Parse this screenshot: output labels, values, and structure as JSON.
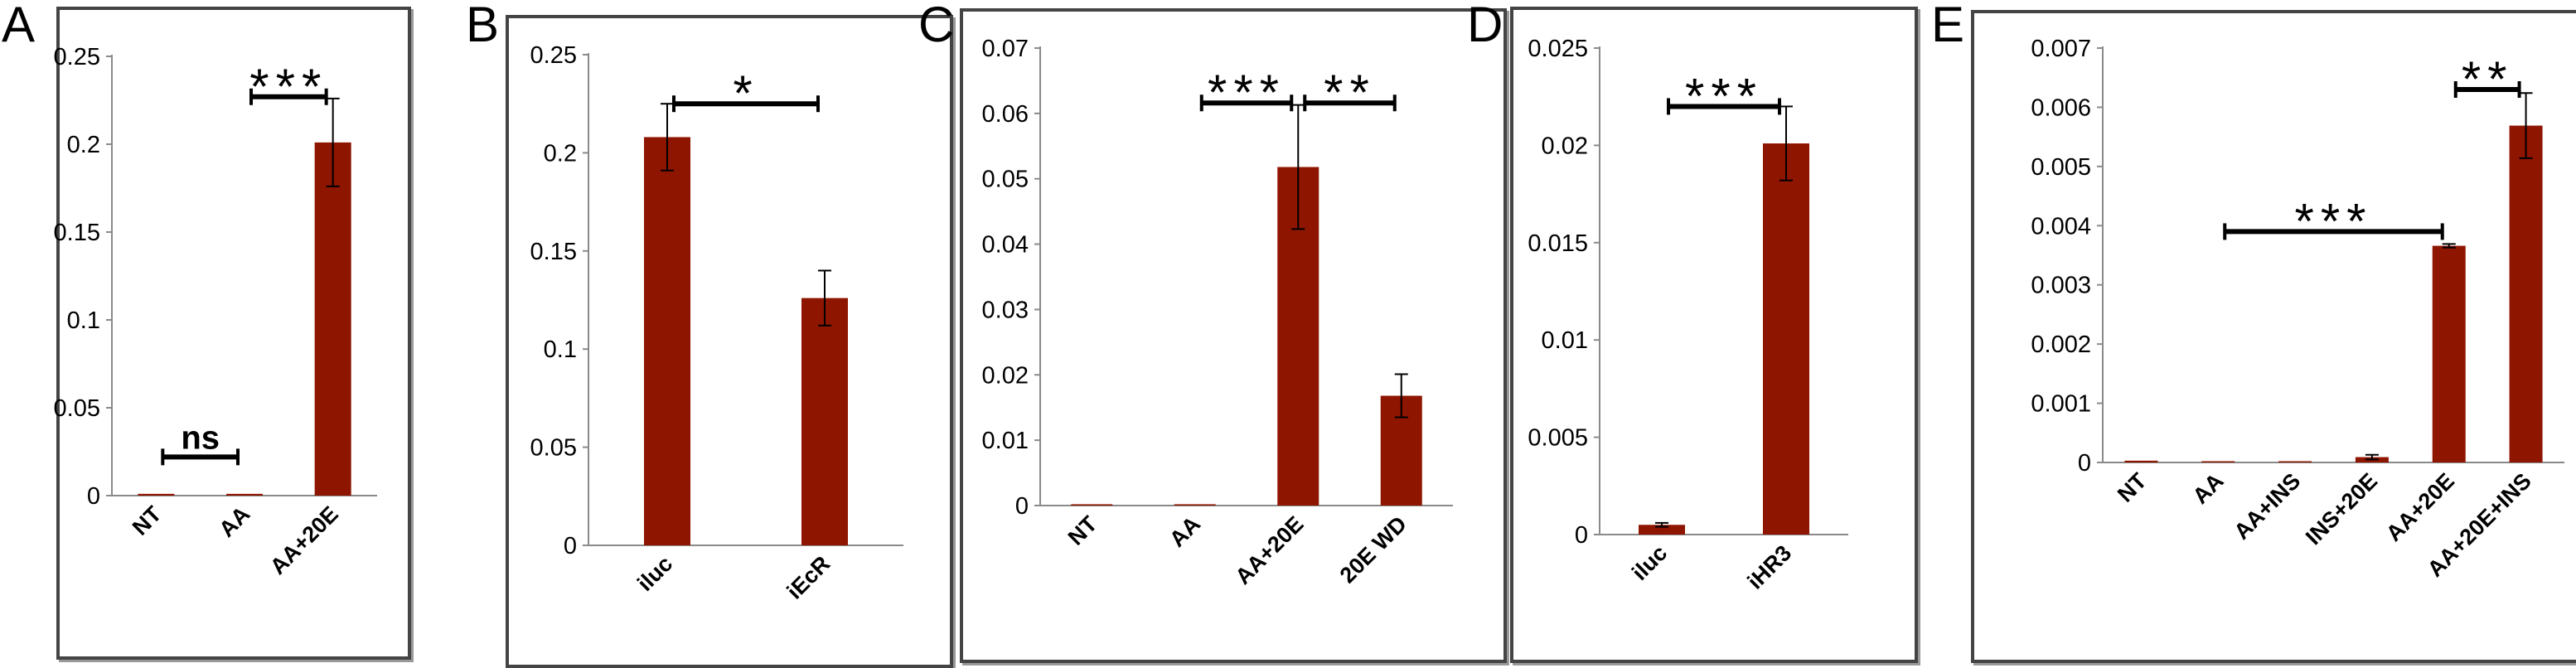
{
  "chart_data": [
    {
      "panel": "A",
      "type": "bar",
      "categories": [
        "NT",
        "AA",
        "AA+20E"
      ],
      "values": [
        0.001,
        0.001,
        0.201
      ],
      "errors": [
        0,
        0,
        0.025
      ],
      "ylim": [
        0,
        0.25
      ],
      "yticks": [
        0,
        0.05,
        0.1,
        0.15,
        0.2,
        0.25
      ],
      "ytick_labels": [
        "0",
        "0.05",
        "0.1",
        "0.15",
        "0.2",
        "0.25"
      ],
      "annotations": [
        {
          "label": "ns",
          "from": 0,
          "to": 1,
          "y": 0.022
        },
        {
          "label": "***",
          "from": 1,
          "to": 2,
          "y": 0.227
        }
      ],
      "title": "",
      "xlabel": "",
      "ylabel": ""
    },
    {
      "panel": "B",
      "type": "bar",
      "categories": [
        "iluc",
        "iEcR"
      ],
      "values": [
        0.208,
        0.126
      ],
      "errors": [
        0.017,
        0.014
      ],
      "ylim": [
        0,
        0.25
      ],
      "yticks": [
        0,
        0.05,
        0.1,
        0.15,
        0.2,
        0.25
      ],
      "ytick_labels": [
        "0",
        "0.05",
        "0.1",
        "0.15",
        "0.2",
        "0.25"
      ],
      "annotations": [
        {
          "label": "*",
          "from": 0,
          "to": 1,
          "y": 0.225
        }
      ],
      "title": "",
      "xlabel": "",
      "ylabel": ""
    },
    {
      "panel": "C",
      "type": "bar",
      "categories": [
        "NT",
        "AA",
        "AA+20E",
        "20E WD"
      ],
      "values": [
        0.0002,
        0.0002,
        0.0518,
        0.0168
      ],
      "errors": [
        0,
        0,
        0.0095,
        0.0033
      ],
      "ylim": [
        0,
        0.07
      ],
      "yticks": [
        0,
        0.01,
        0.02,
        0.03,
        0.04,
        0.05,
        0.06,
        0.07
      ],
      "ytick_labels": [
        "0",
        "0.01",
        "0.02",
        "0.03",
        "0.04",
        "0.05",
        "0.06",
        "0.07"
      ],
      "annotations": [
        {
          "label": "***",
          "from": 1,
          "to": 2,
          "y": 0.0616
        },
        {
          "label": "**",
          "from": 2,
          "to": 3,
          "y": 0.0616
        }
      ],
      "title": "",
      "xlabel": "",
      "ylabel": ""
    },
    {
      "panel": "D",
      "type": "bar",
      "categories": [
        "iluc",
        "iHR3"
      ],
      "values": [
        0.0005,
        0.0201
      ],
      "errors": [
        0.0001,
        0.0019
      ],
      "ylim": [
        0,
        0.025
      ],
      "yticks": [
        0,
        0.005,
        0.01,
        0.015,
        0.02,
        0.025
      ],
      "ytick_labels": [
        "0",
        "0.005",
        "0.01",
        "0.015",
        "0.02",
        "0.025"
      ],
      "annotations": [
        {
          "label": "***",
          "from": 0,
          "to": 1,
          "y": 0.022
        }
      ],
      "title": "",
      "xlabel": "",
      "ylabel": ""
    },
    {
      "panel": "E",
      "type": "bar",
      "categories": [
        "NT",
        "AA",
        "AA+INS",
        "INS+20E",
        "AA+20E",
        "AA+20E+INS"
      ],
      "values": [
        3e-05,
        1e-05,
        1e-05,
        9e-05,
        0.00366,
        0.00569
      ],
      "errors": [
        0,
        0,
        0,
        4e-05,
        3e-05,
        0.00055
      ],
      "ylim": [
        0,
        0.007
      ],
      "yticks": [
        0,
        0.001,
        0.002,
        0.003,
        0.004,
        0.005,
        0.006,
        0.007
      ],
      "ytick_labels": [
        "0",
        "0.001",
        "0.002",
        "0.003",
        "0.004",
        "0.005",
        "0.006",
        "0.007"
      ],
      "annotations": [
        {
          "label": "***",
          "from": 1,
          "to": 4,
          "y": 0.0039
        },
        {
          "label": "**",
          "from": 4,
          "to": 5,
          "y": 0.0063
        }
      ],
      "title": "",
      "xlabel": "",
      "ylabel": ""
    }
  ],
  "colors": {
    "bar": "#8e1500",
    "axis": "#8a8a8a",
    "text": "#000000",
    "frame": "#444444"
  }
}
